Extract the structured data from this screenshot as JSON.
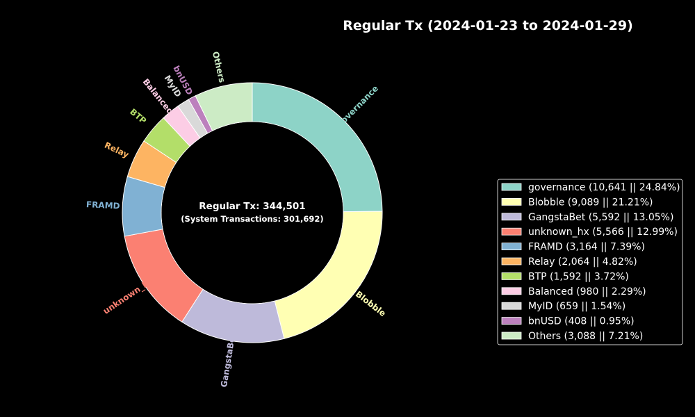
{
  "chart_data": {
    "type": "pie",
    "title": "Regular Tx (2024-01-23 to 2024-01-29)",
    "center_label": "Regular Tx: 344,501",
    "center_sublabel": "(System Transactions: 301,692)",
    "legend_position": "right",
    "slices": [
      {
        "name": "governance",
        "value": 10641,
        "percent": 24.84,
        "color": "#8dd3c7",
        "legend": "governance (10,641 || 24.84%)"
      },
      {
        "name": "Blobble",
        "value": 9089,
        "percent": 21.21,
        "color": "#ffffb3",
        "legend": "Blobble (9,089 || 21.21%)"
      },
      {
        "name": "GangstaBet",
        "value": 5592,
        "percent": 13.05,
        "color": "#bebada",
        "legend": "GangstaBet (5,592 || 13.05%)"
      },
      {
        "name": "unknown_hx",
        "value": 5566,
        "percent": 12.99,
        "color": "#fb8072",
        "legend": "unknown_hx (5,566 || 12.99%)"
      },
      {
        "name": "FRAMD",
        "value": 3164,
        "percent": 7.39,
        "color": "#80b1d3",
        "legend": "FRAMD (3,164 || 7.39%)"
      },
      {
        "name": "Relay",
        "value": 2064,
        "percent": 4.82,
        "color": "#fdb462",
        "legend": "Relay (2,064 || 4.82%)"
      },
      {
        "name": "BTP",
        "value": 1592,
        "percent": 3.72,
        "color": "#b3de69",
        "legend": "BTP (1,592 || 3.72%)"
      },
      {
        "name": "Balanced",
        "value": 980,
        "percent": 2.29,
        "color": "#fccde5",
        "legend": "Balanced (980 || 2.29%)"
      },
      {
        "name": "MyID",
        "value": 659,
        "percent": 1.54,
        "color": "#d9d9d9",
        "legend": "MyID (659 || 1.54%)"
      },
      {
        "name": "bnUSD",
        "value": 408,
        "percent": 0.95,
        "color": "#bc80bd",
        "legend": "bnUSD (408 || 0.95%)"
      },
      {
        "name": "Others",
        "value": 3088,
        "percent": 7.21,
        "color": "#ccebc5",
        "legend": "Others (3,088 || 7.21%)"
      }
    ]
  }
}
